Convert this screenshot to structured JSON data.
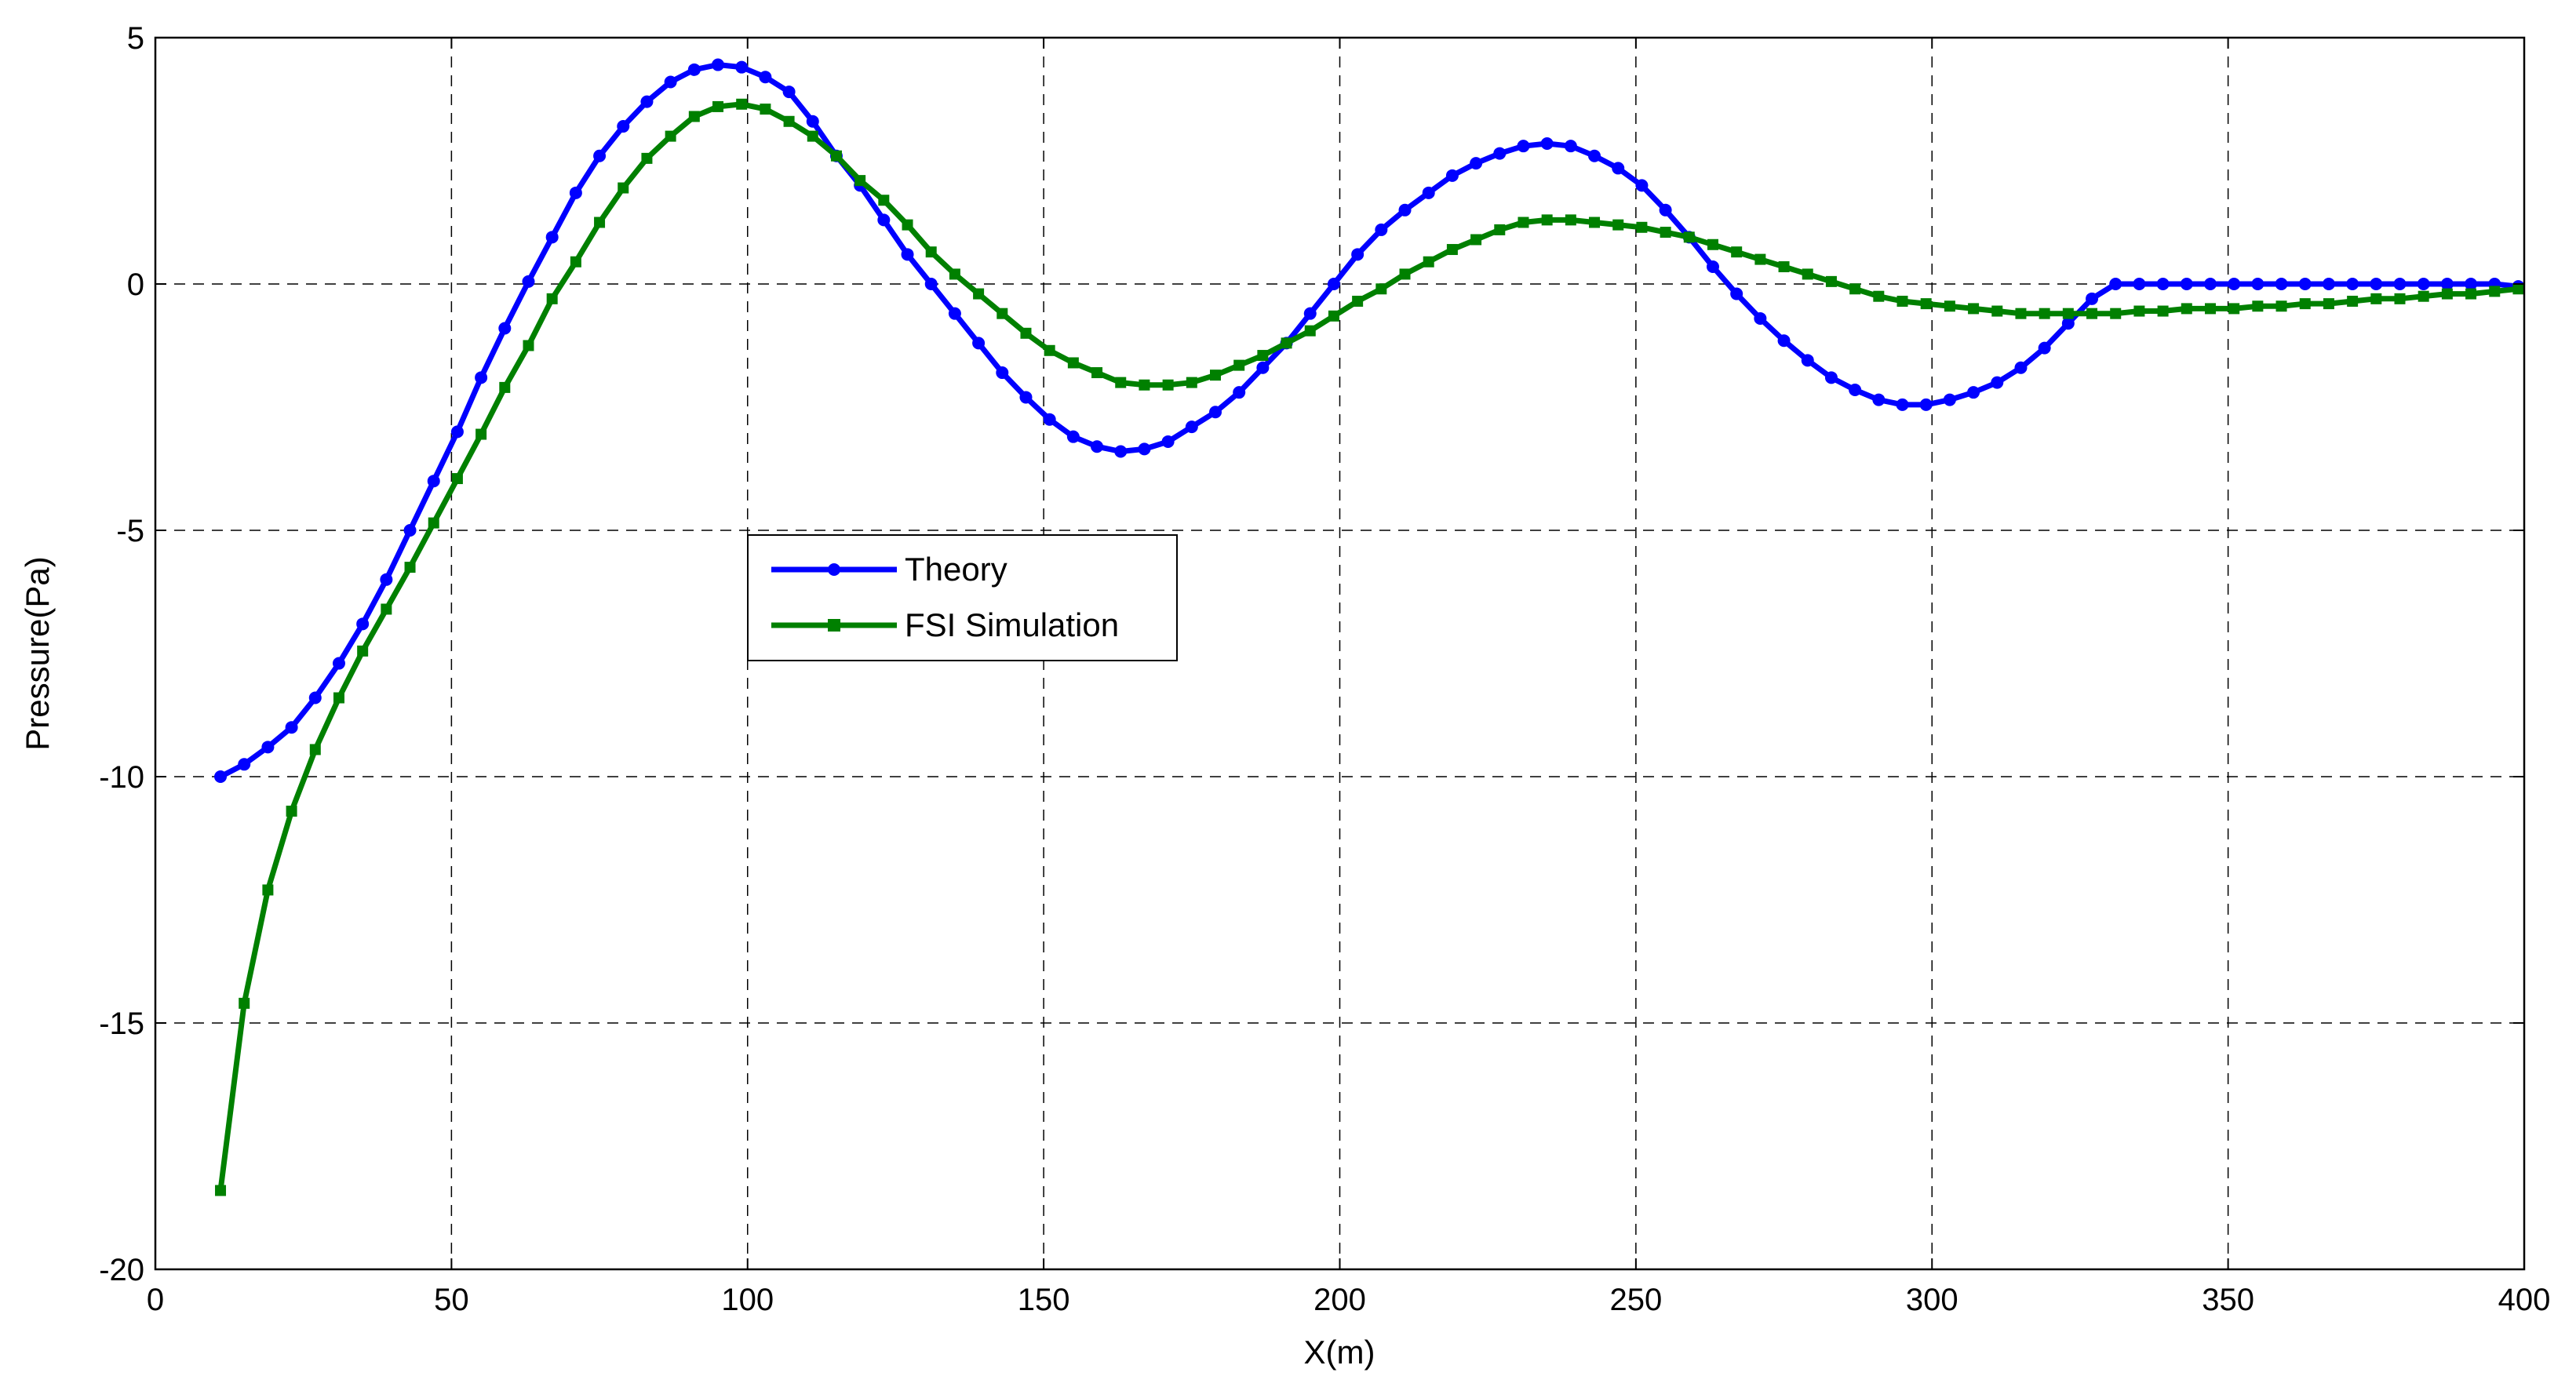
{
  "chart_data": {
    "type": "line",
    "xlabel": "X(m)",
    "ylabel": "Pressure(Pa)",
    "xlim": [
      0,
      400
    ],
    "ylim": [
      -20,
      5
    ],
    "xticks": [
      "0",
      "50",
      "100",
      "150",
      "200",
      "250",
      "300",
      "350",
      "400"
    ],
    "yticks": [
      "5",
      "0",
      "-5",
      "-10",
      "-15",
      "-20"
    ],
    "grid": true,
    "legend_position": "center-left",
    "series": [
      {
        "name": "Theory",
        "color": "#0000ff",
        "marker": "circle",
        "x": [
          11,
          15,
          19,
          23,
          27,
          31,
          35,
          39,
          43,
          47,
          51,
          55,
          59,
          63,
          67,
          71,
          75,
          79,
          83,
          87,
          91,
          95,
          99,
          103,
          107,
          111,
          115,
          119,
          123,
          127,
          131,
          135,
          139,
          143,
          147,
          151,
          155,
          159,
          163,
          167,
          171,
          175,
          179,
          183,
          187,
          191,
          195,
          199,
          203,
          207,
          211,
          215,
          219,
          223,
          227,
          231,
          235,
          239,
          243,
          247,
          251,
          255,
          259,
          263,
          267,
          271,
          275,
          279,
          283,
          287,
          291,
          295,
          299,
          303,
          307,
          311,
          315,
          319,
          323,
          327,
          331,
          335,
          339,
          343,
          347,
          351,
          355,
          359,
          363,
          367,
          371,
          375,
          379,
          383,
          387,
          391,
          395,
          399
        ],
        "y": [
          -10.0,
          -9.75,
          -9.4,
          -9.0,
          -8.4,
          -7.7,
          -6.9,
          -6.0,
          -5.0,
          -4.0,
          -3.0,
          -1.9,
          -0.9,
          0.05,
          0.95,
          1.85,
          2.6,
          3.2,
          3.7,
          4.1,
          4.35,
          4.45,
          4.4,
          4.2,
          3.9,
          3.3,
          2.6,
          2.0,
          1.3,
          0.6,
          0.0,
          -0.6,
          -1.2,
          -1.8,
          -2.3,
          -2.75,
          -3.1,
          -3.3,
          -3.4,
          -3.35,
          -3.2,
          -2.9,
          -2.6,
          -2.2,
          -1.7,
          -1.2,
          -0.6,
          0.0,
          0.6,
          1.1,
          1.5,
          1.85,
          2.2,
          2.45,
          2.65,
          2.8,
          2.85,
          2.8,
          2.6,
          2.35,
          2.0,
          1.5,
          0.95,
          0.35,
          -0.2,
          -0.7,
          -1.15,
          -1.55,
          -1.9,
          -2.15,
          -2.35,
          -2.45,
          -2.45,
          -2.35,
          -2.2,
          -2.0,
          -1.7,
          -1.3,
          -0.8,
          -0.3,
          0.0,
          0.0,
          0.0,
          0.0,
          0.0,
          0.0,
          0.0,
          0.0,
          0.0,
          0.0,
          0.0,
          0.0,
          0.0,
          0.0,
          0.0,
          0.0,
          0.0,
          -0.05
        ]
      },
      {
        "name": "FSI Simulation",
        "color": "#008000",
        "marker": "square",
        "x": [
          11,
          15,
          19,
          23,
          27,
          31,
          35,
          39,
          43,
          47,
          51,
          55,
          59,
          63,
          67,
          71,
          75,
          79,
          83,
          87,
          91,
          95,
          99,
          103,
          107,
          111,
          115,
          119,
          123,
          127,
          131,
          135,
          139,
          143,
          147,
          151,
          155,
          159,
          163,
          167,
          171,
          175,
          179,
          183,
          187,
          191,
          195,
          199,
          203,
          207,
          211,
          215,
          219,
          223,
          227,
          231,
          235,
          239,
          243,
          247,
          251,
          255,
          259,
          263,
          267,
          271,
          275,
          279,
          283,
          287,
          291,
          295,
          299,
          303,
          307,
          311,
          315,
          319,
          323,
          327,
          331,
          335,
          339,
          343,
          347,
          351,
          355,
          359,
          363,
          367,
          371,
          375,
          379,
          383,
          387,
          391,
          395,
          399
        ],
        "y": [
          -18.4,
          -14.6,
          -12.3,
          -10.7,
          -9.45,
          -8.4,
          -7.45,
          -6.6,
          -5.75,
          -4.85,
          -3.95,
          -3.05,
          -2.1,
          -1.25,
          -0.3,
          0.45,
          1.25,
          1.95,
          2.55,
          3.0,
          3.4,
          3.6,
          3.65,
          3.55,
          3.3,
          3.0,
          2.6,
          2.1,
          1.7,
          1.2,
          0.65,
          0.2,
          -0.2,
          -0.6,
          -1.0,
          -1.35,
          -1.6,
          -1.8,
          -2.0,
          -2.05,
          -2.05,
          -2.0,
          -1.85,
          -1.65,
          -1.45,
          -1.2,
          -0.95,
          -0.65,
          -0.35,
          -0.1,
          0.2,
          0.45,
          0.7,
          0.9,
          1.1,
          1.25,
          1.3,
          1.3,
          1.25,
          1.2,
          1.15,
          1.05,
          0.95,
          0.8,
          0.65,
          0.5,
          0.35,
          0.2,
          0.05,
          -0.1,
          -0.25,
          -0.35,
          -0.4,
          -0.45,
          -0.5,
          -0.55,
          -0.6,
          -0.6,
          -0.6,
          -0.6,
          -0.6,
          -0.55,
          -0.55,
          -0.5,
          -0.5,
          -0.5,
          -0.45,
          -0.45,
          -0.4,
          -0.4,
          -0.35,
          -0.3,
          -0.3,
          -0.25,
          -0.2,
          -0.2,
          -0.15,
          -0.1
        ]
      }
    ]
  }
}
